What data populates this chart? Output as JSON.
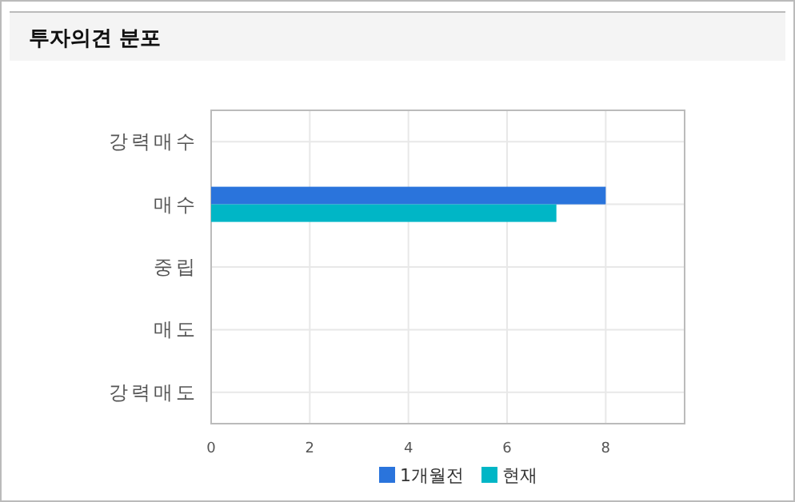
{
  "chart_data": {
    "type": "bar",
    "orientation": "horizontal",
    "title": "투자의견 분포",
    "categories": [
      "강력매수",
      "매수",
      "중립",
      "매도",
      "강력매도"
    ],
    "series": [
      {
        "name": "1개월전",
        "color": "#2a74dc",
        "values": [
          0,
          8,
          0,
          0,
          0
        ]
      },
      {
        "name": "현재",
        "color": "#00b6c6",
        "values": [
          0,
          7,
          0,
          0,
          0
        ]
      }
    ],
    "xlim": [
      0,
      9.6
    ],
    "xticks": [
      0,
      2,
      4,
      6,
      8
    ],
    "grid": true,
    "legend": "bottom"
  }
}
